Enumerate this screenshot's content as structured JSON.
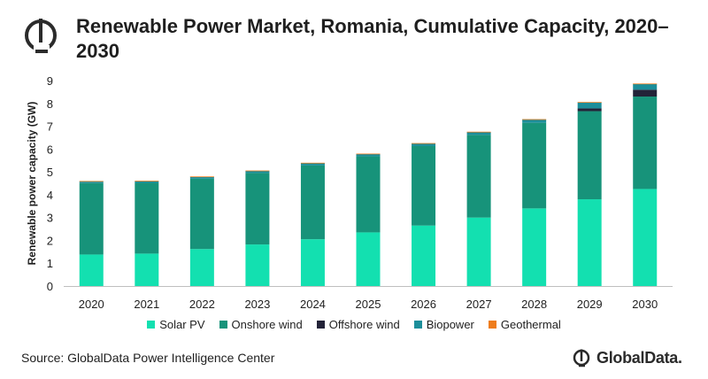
{
  "title": "Renewable Power Market, Romania, Cumulative Capacity, 2020–2030",
  "source": "Source: GlobalData Power Intelligence Center",
  "brand": "GlobalData.",
  "colors": {
    "solar": "#13e0b0",
    "onshore": "#17937a",
    "offshore": "#232338",
    "biopower": "#1c8e9a",
    "geothermal": "#ef7d1d",
    "axis": "#bfbfbf",
    "text": "#1f1f1f"
  },
  "chart_data": {
    "type": "bar",
    "stacked": true,
    "title": "Renewable Power Market, Romania, Cumulative Capacity, 2020–2030",
    "xlabel": "",
    "ylabel": "Renewable power capacity (GW)",
    "ylim": [
      0,
      9
    ],
    "yticks": [
      "0",
      "1",
      "2",
      "3",
      "4",
      "5",
      "6",
      "7",
      "8",
      "9"
    ],
    "grid": false,
    "legend_position": "bottom",
    "categories": [
      "2020",
      "2021",
      "2022",
      "2023",
      "2024",
      "2025",
      "2026",
      "2027",
      "2028",
      "2029",
      "2030"
    ],
    "series": [
      {
        "name": "Solar PV",
        "color_key": "solar",
        "values": [
          1.38,
          1.42,
          1.62,
          1.82,
          2.05,
          2.35,
          2.65,
          3.0,
          3.4,
          3.8,
          4.25
        ]
      },
      {
        "name": "Onshore wind",
        "color_key": "onshore",
        "values": [
          3.13,
          3.1,
          3.08,
          3.13,
          3.23,
          3.33,
          3.48,
          3.62,
          3.75,
          3.86,
          4.05
        ]
      },
      {
        "name": "Offshore wind",
        "color_key": "offshore",
        "values": [
          0,
          0,
          0,
          0,
          0,
          0,
          0,
          0,
          0,
          0.12,
          0.3
        ]
      },
      {
        "name": "Biopower",
        "color_key": "biopower",
        "values": [
          0.08,
          0.08,
          0.09,
          0.1,
          0.11,
          0.11,
          0.12,
          0.13,
          0.15,
          0.27,
          0.26
        ]
      },
      {
        "name": "Geothermal",
        "color_key": "geothermal",
        "values": [
          0.01,
          0.01,
          0.01,
          0.01,
          0.01,
          0.01,
          0.01,
          0.01,
          0.01,
          0.01,
          0.01
        ]
      }
    ]
  }
}
